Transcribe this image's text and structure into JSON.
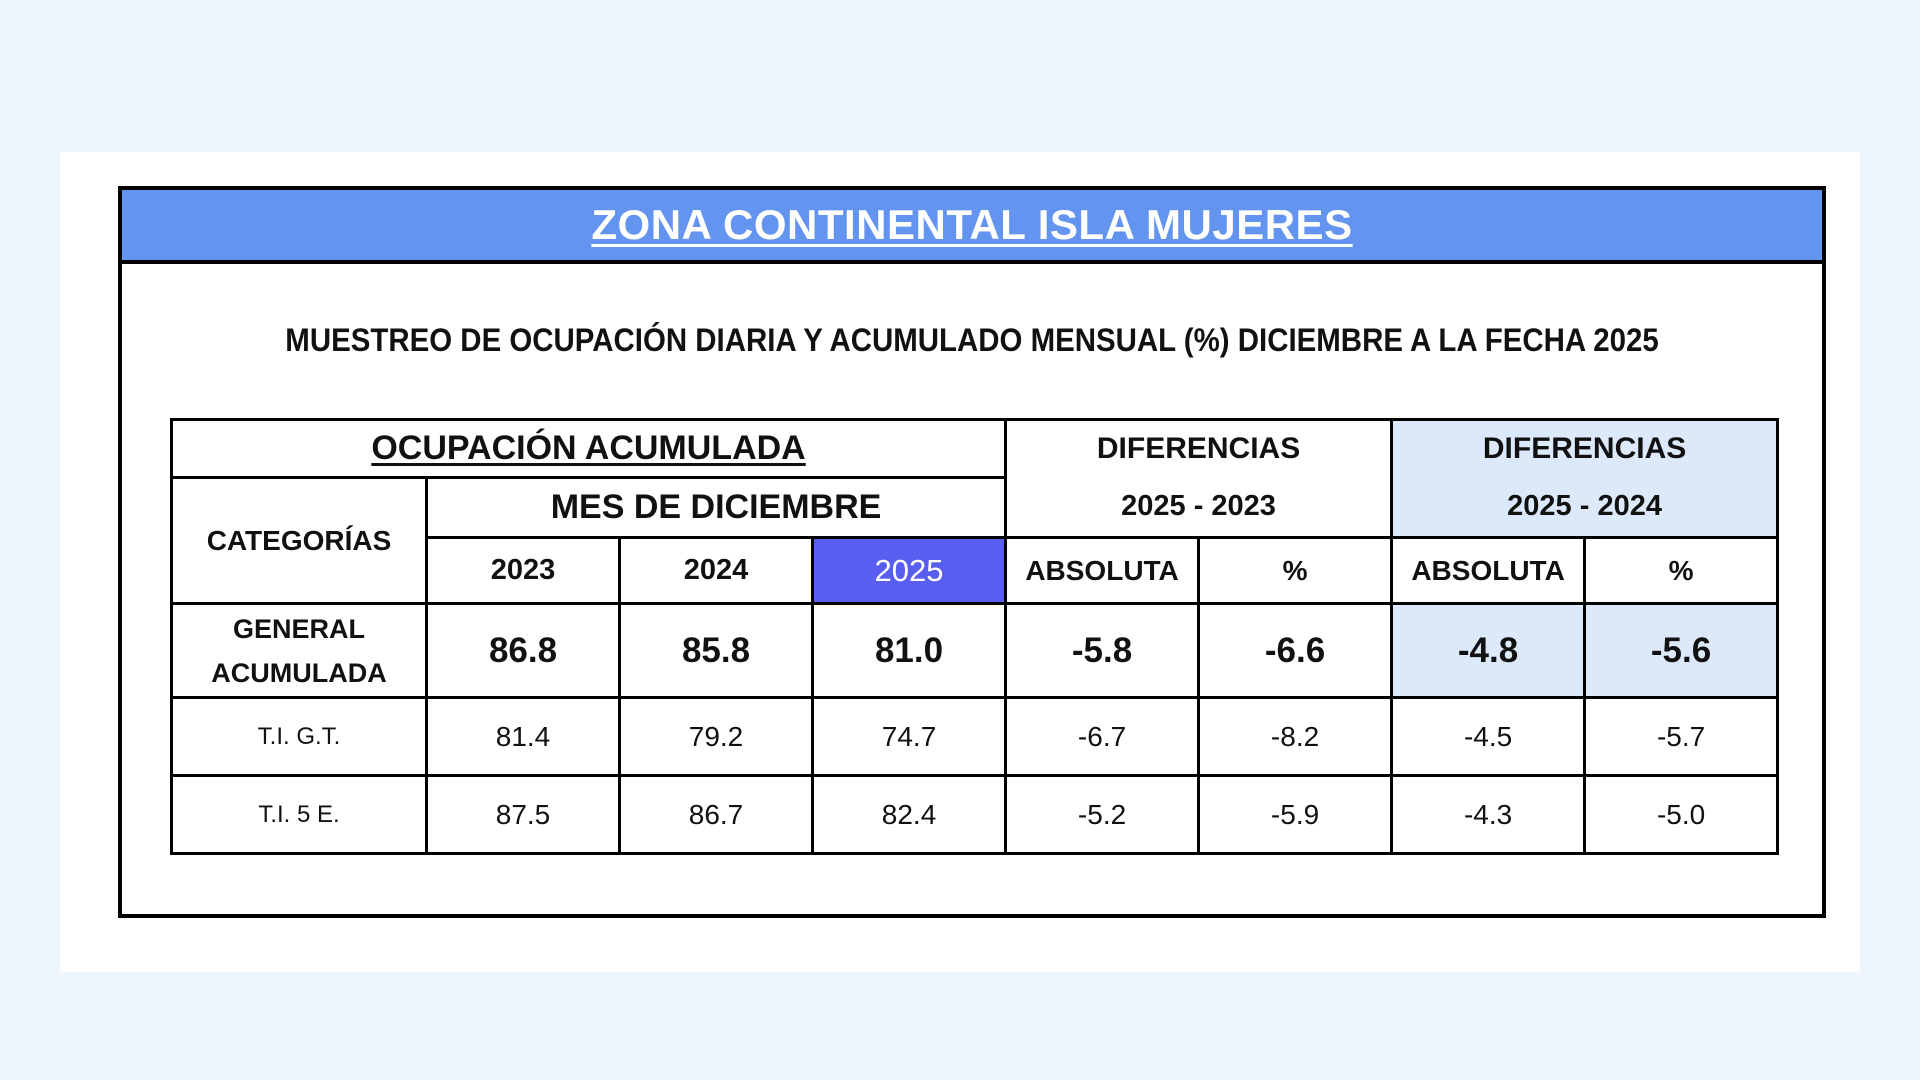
{
  "banner": {
    "title": "ZONA CONTINENTAL ISLA MUJERES"
  },
  "subtitle": "MUESTREO DE OCUPACIÓN DIARIA Y ACUMULADO MENSUAL (%) DICIEMBRE A LA FECHA 2025",
  "table": {
    "group_occupancy": "OCUPACIÓN ACUMULADA",
    "month_label": "MES DE DICIEMBRE",
    "categories_label": "CATEGORÍAS",
    "diff_a": {
      "title": "DIFERENCIAS",
      "range": "2025 - 2023"
    },
    "diff_b": {
      "title": "DIFERENCIAS",
      "range": "2025 - 2024"
    },
    "years": [
      "2023",
      "2024",
      "2025"
    ],
    "abs_label": "ABSOLUTA",
    "pct_label": "%",
    "rows": [
      {
        "category": "GENERAL ACUMULADA",
        "values": [
          "86.8",
          "85.8",
          "81.0",
          "-5.8",
          "-6.6",
          "-4.8",
          "-5.6"
        ]
      },
      {
        "category": "T.I. G.T.",
        "values": [
          "81.4",
          "79.2",
          "74.7",
          "-6.7",
          "-8.2",
          "-4.5",
          "-5.7"
        ]
      },
      {
        "category": "T.I. 5 E.",
        "values": [
          "87.5",
          "86.7",
          "82.4",
          "-5.2",
          "-5.9",
          "-4.3",
          "-5.0"
        ]
      }
    ]
  },
  "colors": {
    "banner": "#6394ef",
    "highlight_year": "#5a5ef0",
    "diff_b_fill": "#dce9fb",
    "page_bg": "#eef5fd"
  }
}
